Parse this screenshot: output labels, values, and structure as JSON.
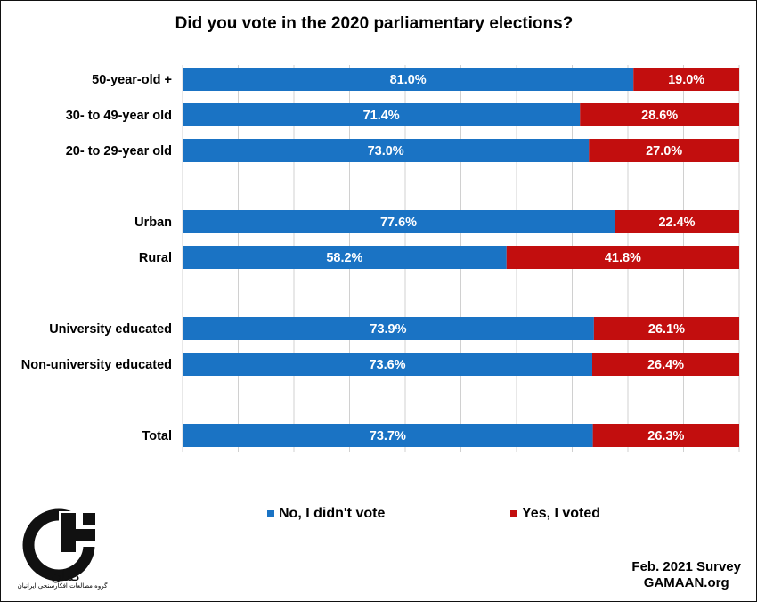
{
  "colors": {
    "no": "#1a73c4",
    "yes": "#c20e0e",
    "grid": "#d0d0d0"
  },
  "legend": {
    "no_label": "No, I didn't vote",
    "yes_label": "Yes, I voted"
  },
  "footer": {
    "line1": "Feb. 2021 Survey",
    "line2": "GAMAAN.org"
  },
  "logo": {
    "wordmark": "گمان",
    "subtitle": "گروه مطالعات افکارسنجی ایرانیان",
    "icon": "gamaan-logo-icon"
  },
  "chart_data": {
    "type": "bar",
    "orientation": "horizontal",
    "stacked": true,
    "normalized": true,
    "title": "Did you vote in the 2020 parliamentary elections?",
    "categories": [
      "50-year-old +",
      "30- to 49-year old",
      "20- to 29-year old",
      "Urban",
      "Rural",
      "University educated",
      "Non-university educated",
      "Total"
    ],
    "series": [
      {
        "name": "No, I didn't vote",
        "values": [
          81.0,
          71.4,
          73.0,
          77.6,
          58.2,
          73.9,
          73.6,
          73.7
        ],
        "labels": [
          "81.0%",
          "71.4%",
          "73.0%",
          "77.6%",
          "58.2%",
          "73.9%",
          "73.6%",
          "73.7%"
        ]
      },
      {
        "name": "Yes, I voted",
        "values": [
          19.0,
          28.6,
          27.0,
          22.4,
          41.8,
          26.1,
          26.4,
          26.3
        ],
        "labels": [
          "19.0%",
          "28.6%",
          "27.0%",
          "22.4%",
          "41.8%",
          "26.1%",
          "26.4%",
          "26.3%"
        ]
      }
    ],
    "xlim": [
      0,
      100
    ],
    "grid": true,
    "legend_position": "bottom"
  }
}
